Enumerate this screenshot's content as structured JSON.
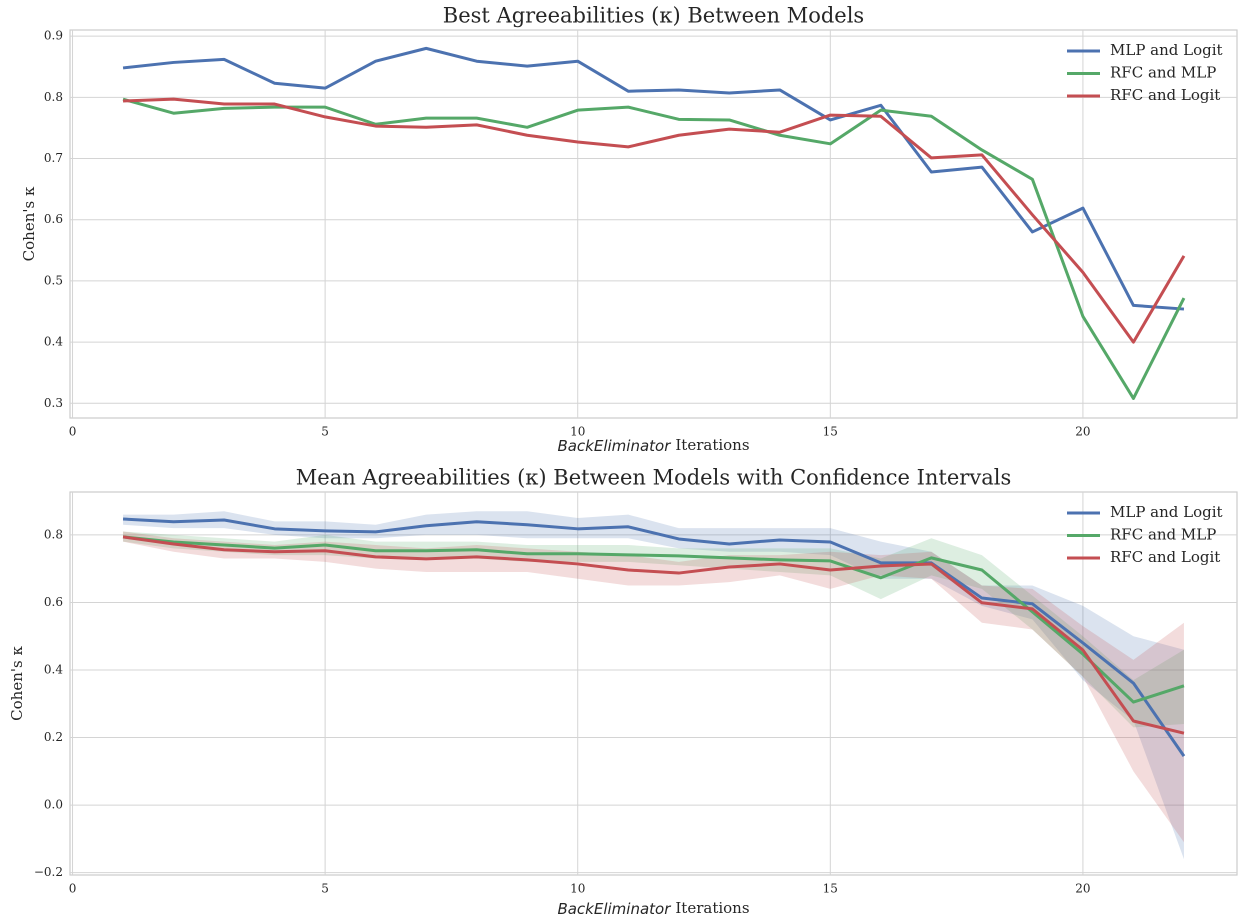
{
  "chart_data": [
    {
      "type": "line",
      "title": "Best Agreeabilities (κ) Between Models",
      "xlabel": [
        "BackEliminator",
        "Iterations"
      ],
      "ylabel": "Cohen's κ",
      "x": [
        1,
        2,
        3,
        4,
        5,
        6,
        7,
        8,
        9,
        10,
        11,
        12,
        13,
        14,
        15,
        16,
        17,
        18,
        19,
        20,
        21,
        22
      ],
      "xlim": [
        -0.05,
        23.05
      ],
      "xticks": [
        0,
        5,
        10,
        15,
        20
      ],
      "ylim": [
        0.276,
        0.91
      ],
      "yticks": [
        0.3,
        0.4,
        0.5,
        0.6,
        0.7,
        0.8,
        0.9
      ],
      "grid": true,
      "legend": "upper right",
      "series": [
        {
          "name": "MLP and Logit",
          "color": "#4c72b0",
          "values": [
            0.848,
            0.857,
            0.862,
            0.823,
            0.815,
            0.859,
            0.88,
            0.859,
            0.851,
            0.859,
            0.81,
            0.812,
            0.807,
            0.812,
            0.763,
            0.787,
            0.678,
            0.686,
            0.58,
            0.619,
            0.46,
            0.454
          ]
        },
        {
          "name": "RFC and MLP",
          "color": "#55a868",
          "values": [
            0.797,
            0.774,
            0.782,
            0.784,
            0.784,
            0.756,
            0.766,
            0.766,
            0.751,
            0.779,
            0.784,
            0.764,
            0.763,
            0.738,
            0.724,
            0.779,
            0.769,
            0.714,
            0.666,
            0.442,
            0.308,
            0.472
          ]
        },
        {
          "name": "RFC and Logit",
          "color": "#c44e52",
          "values": [
            0.794,
            0.797,
            0.789,
            0.789,
            0.768,
            0.753,
            0.751,
            0.755,
            0.738,
            0.727,
            0.719,
            0.738,
            0.748,
            0.743,
            0.771,
            0.769,
            0.701,
            0.706,
            0.608,
            0.514,
            0.4,
            0.541
          ]
        }
      ]
    },
    {
      "type": "line",
      "title": "Mean Agreeabilities (κ) Between Models with Confidence Intervals",
      "xlabel": [
        "BackEliminator",
        "Iterations"
      ],
      "ylabel": "Cohen's κ",
      "x": [
        1,
        2,
        3,
        4,
        5,
        6,
        7,
        8,
        9,
        10,
        11,
        12,
        13,
        14,
        15,
        16,
        17,
        18,
        19,
        20,
        21,
        22
      ],
      "xlim": [
        -0.05,
        23.05
      ],
      "xticks": [
        0,
        5,
        10,
        15,
        20
      ],
      "ylim": [
        -0.207,
        0.927
      ],
      "yticks": [
        {
          "value": -0.2,
          "label": "−0.2"
        },
        {
          "value": 0,
          "label": "0.0"
        },
        0.2,
        0.4,
        0.6,
        0.8
      ],
      "grid": true,
      "legend": "upper right",
      "series": [
        {
          "name": "MLP and Logit",
          "color": "#4c72b0",
          "values": [
            0.847,
            0.839,
            0.844,
            0.818,
            0.812,
            0.809,
            0.827,
            0.839,
            0.83,
            0.818,
            0.824,
            0.788,
            0.773,
            0.785,
            0.779,
            0.717,
            0.717,
            0.613,
            0.596,
            0.48,
            0.361,
            0.145
          ],
          "lower": [
            0.83,
            0.82,
            0.82,
            0.8,
            0.79,
            0.79,
            0.8,
            0.8,
            0.79,
            0.79,
            0.79,
            0.76,
            0.75,
            0.75,
            0.74,
            0.67,
            0.67,
            0.59,
            0.55,
            0.37,
            0.25,
            -0.16
          ],
          "upper": [
            0.86,
            0.86,
            0.87,
            0.84,
            0.84,
            0.83,
            0.86,
            0.87,
            0.87,
            0.85,
            0.86,
            0.82,
            0.82,
            0.82,
            0.82,
            0.78,
            0.75,
            0.65,
            0.65,
            0.59,
            0.5,
            0.46
          ]
        },
        {
          "name": "RFC and MLP",
          "color": "#55a868",
          "values": [
            0.794,
            0.779,
            0.77,
            0.761,
            0.77,
            0.753,
            0.753,
            0.756,
            0.744,
            0.744,
            0.741,
            0.738,
            0.732,
            0.726,
            0.723,
            0.673,
            0.732,
            0.696,
            0.572,
            0.447,
            0.305,
            0.353
          ],
          "lower": [
            0.78,
            0.76,
            0.75,
            0.74,
            0.74,
            0.73,
            0.73,
            0.73,
            0.72,
            0.72,
            0.72,
            0.71,
            0.7,
            0.69,
            0.68,
            0.61,
            0.68,
            0.64,
            0.52,
            0.38,
            0.23,
            0.24
          ],
          "upper": [
            0.81,
            0.8,
            0.79,
            0.78,
            0.8,
            0.78,
            0.78,
            0.78,
            0.77,
            0.77,
            0.77,
            0.76,
            0.76,
            0.76,
            0.76,
            0.73,
            0.79,
            0.74,
            0.62,
            0.5,
            0.37,
            0.46
          ]
        },
        {
          "name": "RFC and Logit",
          "color": "#c44e52",
          "values": [
            0.794,
            0.773,
            0.756,
            0.75,
            0.753,
            0.735,
            0.729,
            0.735,
            0.726,
            0.714,
            0.696,
            0.687,
            0.705,
            0.714,
            0.696,
            0.708,
            0.714,
            0.599,
            0.581,
            0.459,
            0.249,
            0.213
          ],
          "lower": [
            0.78,
            0.75,
            0.73,
            0.73,
            0.72,
            0.7,
            0.69,
            0.69,
            0.69,
            0.67,
            0.65,
            0.65,
            0.66,
            0.68,
            0.64,
            0.68,
            0.67,
            0.54,
            0.52,
            0.38,
            0.1,
            -0.11
          ],
          "upper": [
            0.81,
            0.79,
            0.78,
            0.77,
            0.78,
            0.77,
            0.76,
            0.77,
            0.76,
            0.75,
            0.74,
            0.72,
            0.74,
            0.74,
            0.75,
            0.74,
            0.75,
            0.65,
            0.64,
            0.53,
            0.43,
            0.54
          ]
        }
      ]
    }
  ]
}
